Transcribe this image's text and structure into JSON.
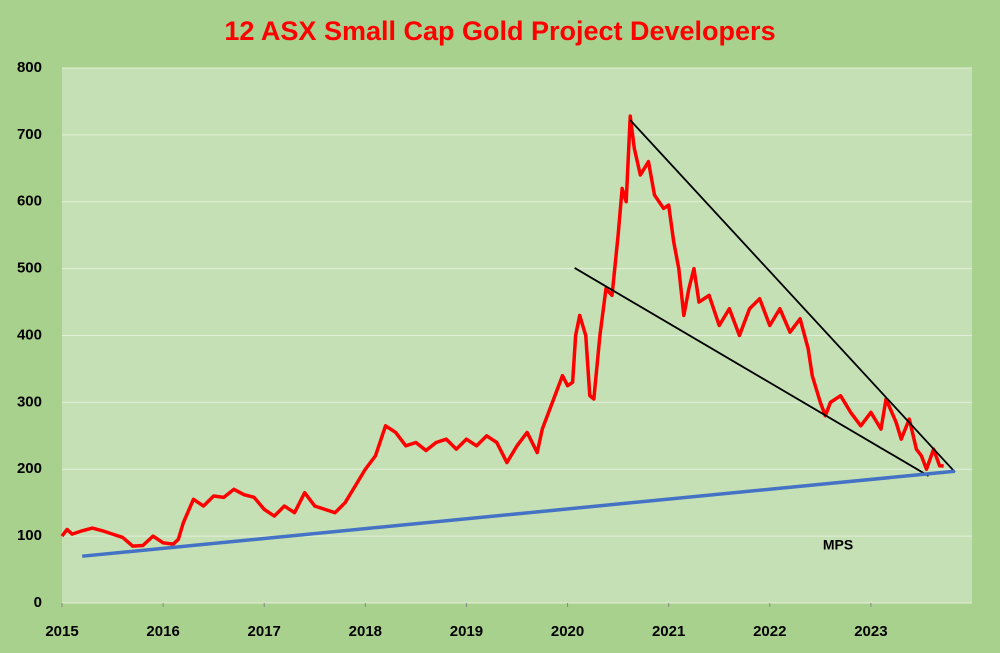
{
  "chart_data": {
    "type": "line",
    "title": "12 ASX Small Cap Gold Project Developers",
    "annotation": "MPS",
    "color": "#ff0000",
    "x": [
      2015.0,
      2015.05,
      2015.1,
      2015.2,
      2015.3,
      2015.4,
      2015.5,
      2015.6,
      2015.7,
      2015.8,
      2015.9,
      2016.0,
      2016.1,
      2016.15,
      2016.2,
      2016.3,
      2016.4,
      2016.5,
      2016.6,
      2016.7,
      2016.8,
      2016.9,
      2017.0,
      2017.1,
      2017.2,
      2017.3,
      2017.4,
      2017.5,
      2017.6,
      2017.7,
      2017.8,
      2017.9,
      2018.0,
      2018.1,
      2018.2,
      2018.3,
      2018.4,
      2018.5,
      2018.6,
      2018.7,
      2018.8,
      2018.9,
      2019.0,
      2019.1,
      2019.2,
      2019.3,
      2019.4,
      2019.5,
      2019.6,
      2019.7,
      2019.75,
      2019.85,
      2019.95,
      2020.0,
      2020.05,
      2020.08,
      2020.12,
      2020.18,
      2020.22,
      2020.26,
      2020.32,
      2020.38,
      2020.44,
      2020.5,
      2020.54,
      2020.58,
      2020.62,
      2020.66,
      2020.72,
      2020.8,
      2020.86,
      2020.95,
      2021.0,
      2021.05,
      2021.1,
      2021.15,
      2021.2,
      2021.25,
      2021.3,
      2021.4,
      2021.5,
      2021.6,
      2021.7,
      2021.8,
      2021.9,
      2022.0,
      2022.1,
      2022.2,
      2022.3,
      2022.38,
      2022.42,
      2022.5,
      2022.55,
      2022.6,
      2022.7,
      2022.8,
      2022.9,
      2023.0,
      2023.1,
      2023.15,
      2023.25,
      2023.3,
      2023.38,
      2023.45,
      2023.5,
      2023.55,
      2023.62,
      2023.68,
      2023.72
    ],
    "values": [
      100,
      110,
      103,
      108,
      112,
      108,
      103,
      98,
      85,
      86,
      100,
      90,
      88,
      95,
      120,
      155,
      145,
      160,
      158,
      170,
      162,
      158,
      140,
      130,
      145,
      135,
      165,
      145,
      140,
      135,
      150,
      175,
      200,
      220,
      265,
      255,
      235,
      240,
      228,
      240,
      245,
      230,
      245,
      235,
      250,
      240,
      210,
      235,
      255,
      225,
      260,
      300,
      340,
      325,
      330,
      400,
      430,
      400,
      310,
      305,
      400,
      470,
      460,
      550,
      620,
      600,
      728,
      680,
      640,
      660,
      610,
      590,
      595,
      540,
      500,
      430,
      470,
      500,
      450,
      460,
      415,
      440,
      400,
      440,
      455,
      415,
      440,
      405,
      425,
      380,
      340,
      300,
      280,
      300,
      310,
      285,
      265,
      285,
      260,
      305,
      270,
      245,
      275,
      230,
      220,
      200,
      230,
      205,
      205
    ],
    "trend_lines": [
      {
        "color": "#000000",
        "x": [
          2020.62,
          2023.83
        ],
        "y": [
          722,
          196
        ]
      },
      {
        "color": "#000000",
        "x": [
          2020.07,
          2023.57
        ],
        "y": [
          501,
          190
        ]
      },
      {
        "color": "#4472c4",
        "x": [
          2015.2,
          2023.83
        ],
        "y": [
          70,
          197
        ]
      }
    ],
    "xlim": [
      2015,
      2024
    ],
    "ylim": [
      0,
      800
    ],
    "xticks": [
      2015,
      2016,
      2017,
      2018,
      2019,
      2020,
      2021,
      2022,
      2023
    ],
    "yticks": [
      0,
      100,
      200,
      300,
      400,
      500,
      600,
      700,
      800
    ],
    "grid": true
  }
}
